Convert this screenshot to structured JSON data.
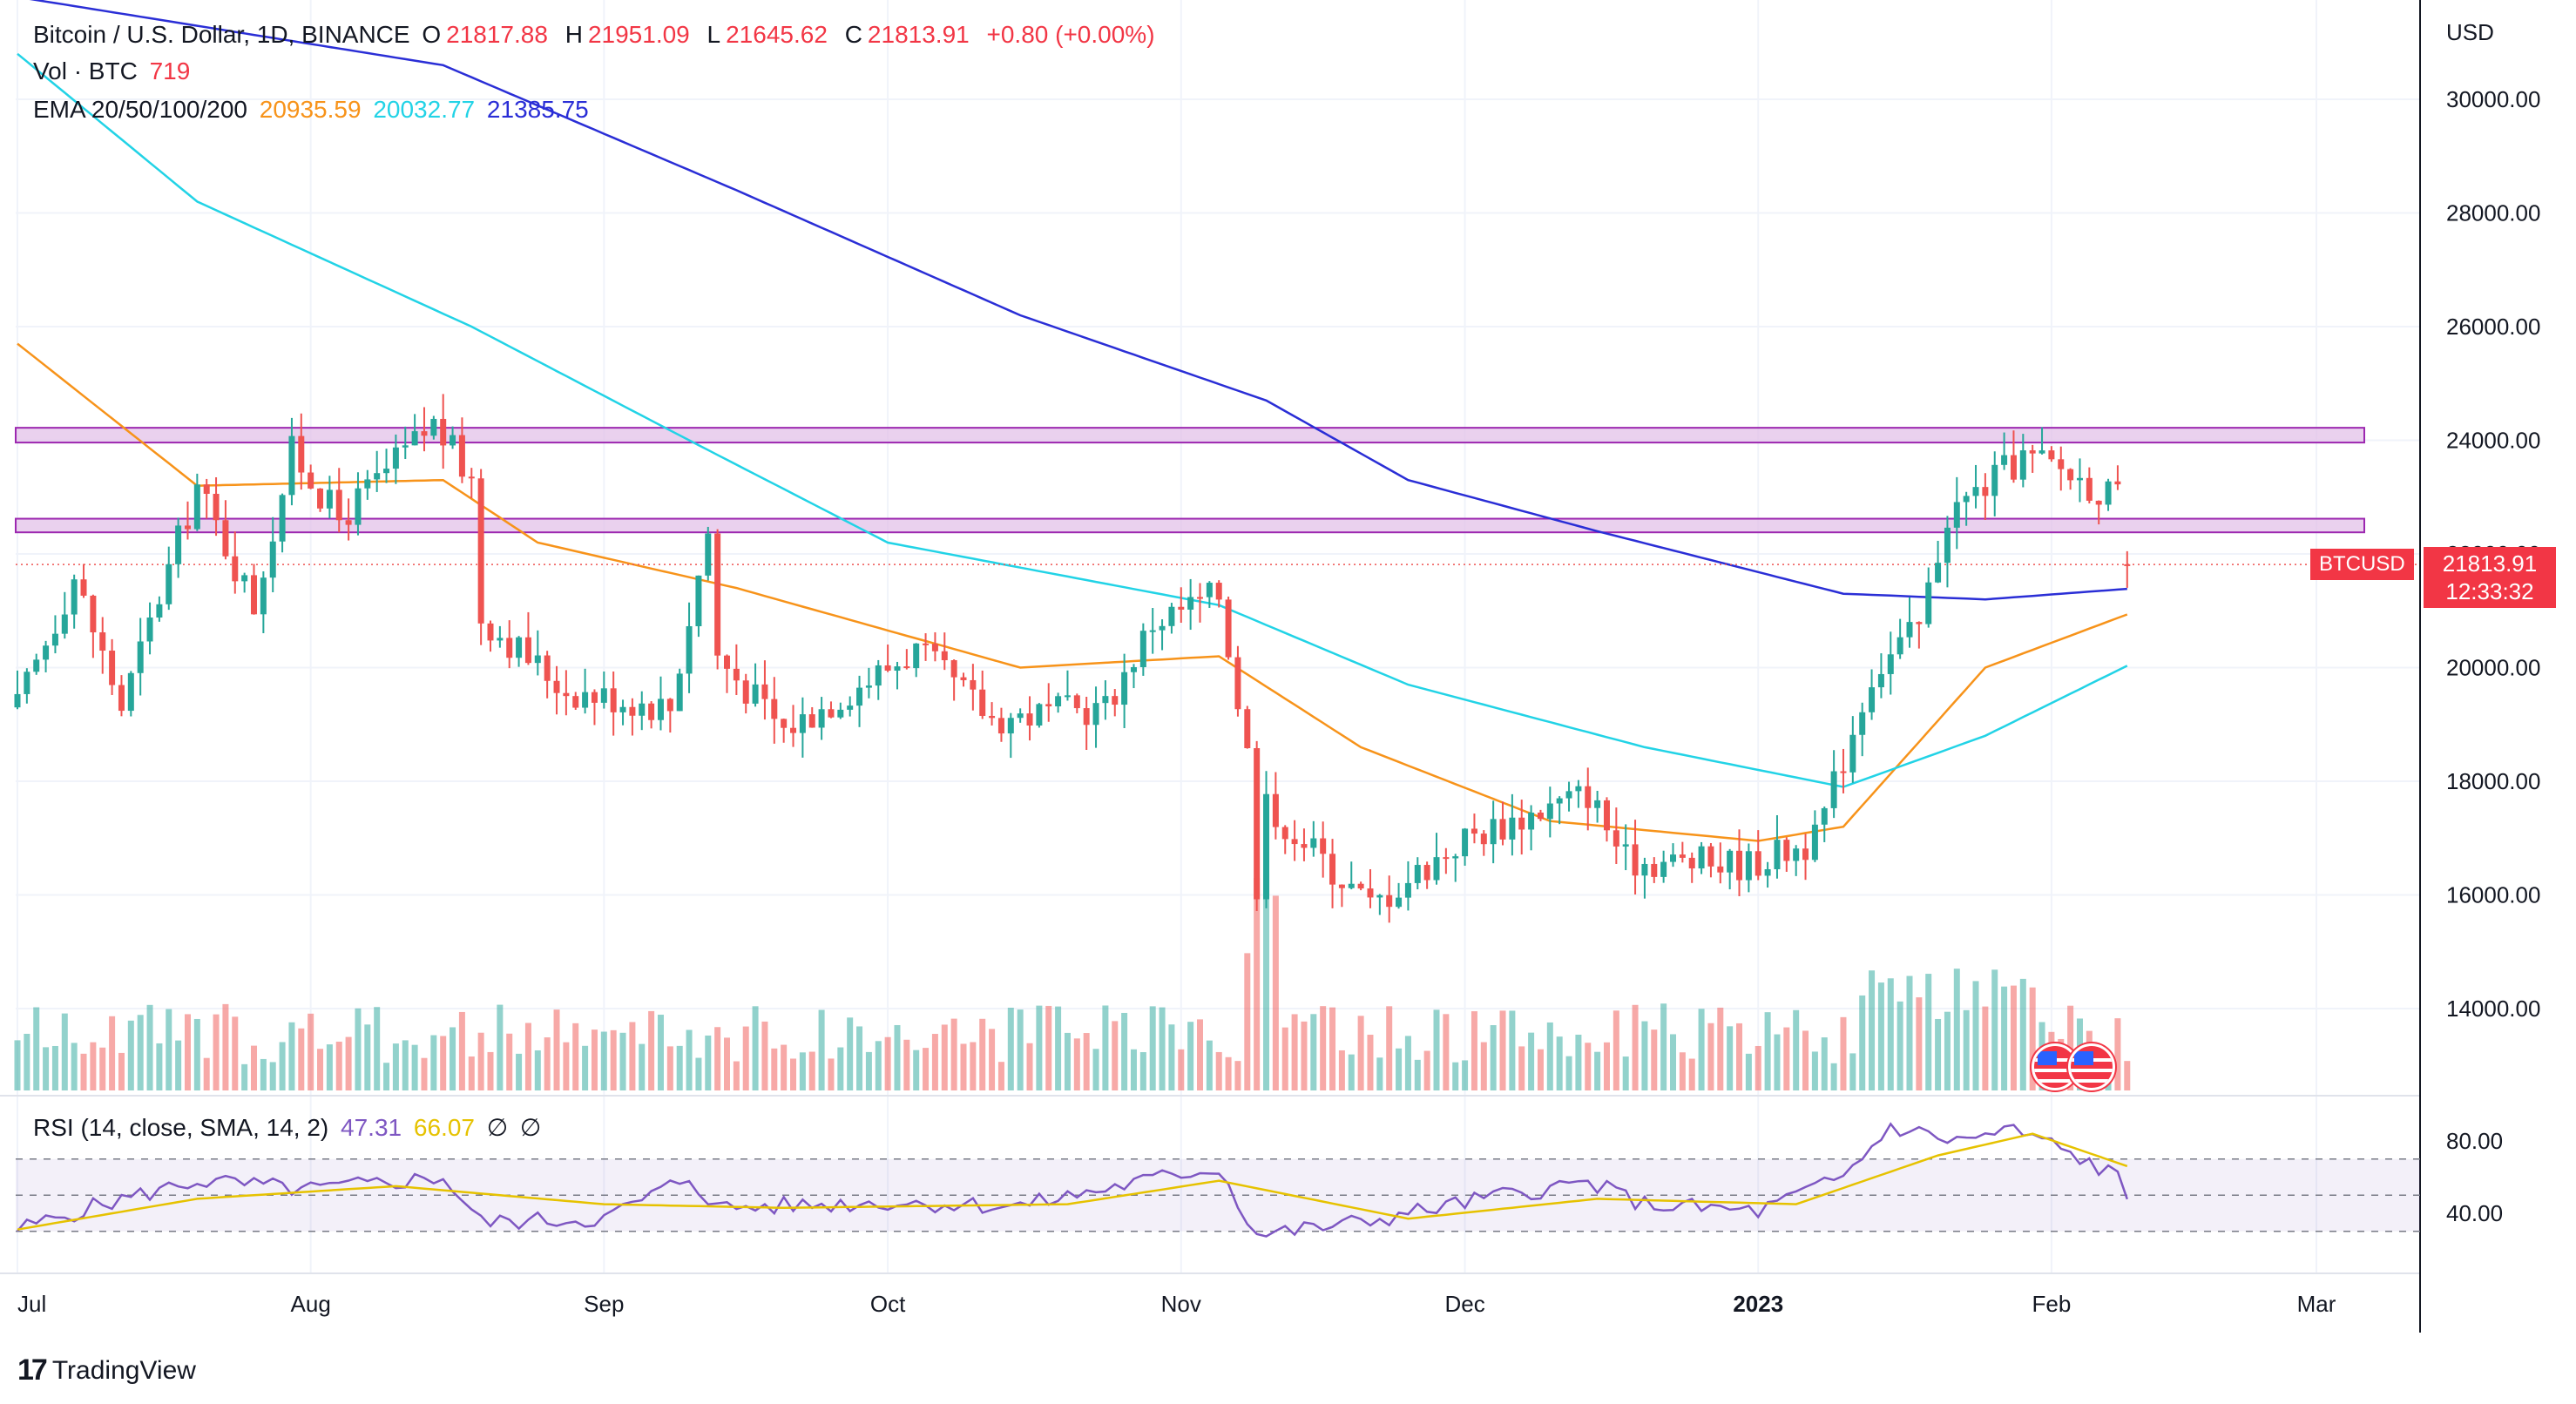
{
  "header": {
    "symbol_title": "Bitcoin / U.S. Dollar, 1D, BINANCE",
    "open_label": "O",
    "open": "21817.88",
    "high_label": "H",
    "high": "21951.09",
    "low_label": "L",
    "low": "21645.62",
    "close_label": "C",
    "close": "21813.91",
    "change": "+0.80 (+0.00%)"
  },
  "volume_legend": {
    "label": "Vol · BTC",
    "value": "719"
  },
  "ema_legend": {
    "label": "EMA 20/50/100/200",
    "ema20": "20935.59",
    "ema50": "20032.77",
    "ema100": "21385.75"
  },
  "rsi_legend": {
    "label": "RSI (14, close, SMA, 14, 2)",
    "rsi": "47.31",
    "sma": "66.07",
    "icon1": "∅",
    "icon2": "∅"
  },
  "price_axis": {
    "currency": "USD",
    "ticks": [
      "30000.00",
      "28000.00",
      "26000.00",
      "24000.00",
      "22000.00",
      "20000.00",
      "18000.00",
      "16000.00",
      "14000.00"
    ]
  },
  "rsi_axis": {
    "ticks": [
      "80.00",
      "40.00"
    ]
  },
  "time_axis": {
    "ticks": [
      "Jul",
      "Aug",
      "Sep",
      "Oct",
      "Nov",
      "Dec",
      "2023",
      "Feb",
      "Mar"
    ]
  },
  "last_price": {
    "symbol": "BTCUSD",
    "price": "21813.91",
    "countdown": "12:33:32"
  },
  "branding": {
    "name": "TradingView"
  },
  "colors": {
    "up": "#26a69a",
    "down": "#ef5350",
    "ema20": "#f7931a",
    "ema50": "#22d3e6",
    "ema100": "#2a2ed6",
    "rsi": "#7e57c2",
    "rsi_sma": "#e6c200",
    "zone_fill": "#e1bee7",
    "zone_stroke": "#9c27b0"
  },
  "chart_data": [
    {
      "type": "candlestick",
      "title": "Bitcoin / U.S. Dollar, 1D, BINANCE",
      "ylabel": "USD",
      "ylim": [
        13000,
        31500
      ],
      "time_ticks": [
        "Jul",
        "Aug",
        "Sep",
        "Oct",
        "Nov",
        "Dec",
        "2023",
        "Feb",
        "Mar"
      ],
      "close_waypoints": [
        {
          "date": "2022-07-01",
          "close": 19300
        },
        {
          "date": "2022-07-07",
          "close": 21600
        },
        {
          "date": "2022-07-12",
          "close": 19300
        },
        {
          "date": "2022-07-20",
          "close": 23200
        },
        {
          "date": "2022-07-26",
          "close": 21100
        },
        {
          "date": "2022-07-30",
          "close": 23800
        },
        {
          "date": "2022-08-04",
          "close": 22600
        },
        {
          "date": "2022-08-14",
          "close": 24300
        },
        {
          "date": "2022-08-18",
          "close": 23300
        },
        {
          "date": "2022-08-19",
          "close": 20900
        },
        {
          "date": "2022-08-28",
          "close": 19600
        },
        {
          "date": "2022-09-08",
          "close": 19300
        },
        {
          "date": "2022-09-12",
          "close": 22400
        },
        {
          "date": "2022-09-13",
          "close": 20200
        },
        {
          "date": "2022-09-20",
          "close": 18900
        },
        {
          "date": "2022-10-04",
          "close": 20300
        },
        {
          "date": "2022-10-12",
          "close": 19100
        },
        {
          "date": "2022-10-24",
          "close": 19300
        },
        {
          "date": "2022-10-29",
          "close": 20800
        },
        {
          "date": "2022-11-05",
          "close": 21300
        },
        {
          "date": "2022-11-08",
          "close": 18500
        },
        {
          "date": "2022-11-09",
          "close": 15900
        },
        {
          "date": "2022-11-10",
          "close": 17600
        },
        {
          "date": "2022-11-21",
          "close": 15800
        },
        {
          "date": "2022-12-01",
          "close": 17000
        },
        {
          "date": "2022-12-14",
          "close": 17800
        },
        {
          "date": "2022-12-18",
          "close": 16600
        },
        {
          "date": "2022-12-31",
          "close": 16550
        },
        {
          "date": "2023-01-07",
          "close": 16950
        },
        {
          "date": "2023-01-13",
          "close": 19900
        },
        {
          "date": "2023-01-18",
          "close": 20700
        },
        {
          "date": "2023-01-21",
          "close": 22700
        },
        {
          "date": "2023-01-29",
          "close": 23700
        },
        {
          "date": "2023-02-02",
          "close": 23500
        },
        {
          "date": "2023-02-08",
          "close": 22950
        },
        {
          "date": "2023-02-09",
          "close": 21813.91
        }
      ],
      "last": {
        "open": 21817.88,
        "high": 21951.09,
        "low": 21645.62,
        "close": 21813.91
      }
    },
    {
      "type": "line",
      "series": [
        {
          "name": "EMA 20",
          "color": "#f7931a",
          "points": [
            [
              "2022-07-01",
              25700
            ],
            [
              "2022-07-20",
              23200
            ],
            [
              "2022-08-15",
              23300
            ],
            [
              "2022-08-25",
              22200
            ],
            [
              "2022-09-15",
              21400
            ],
            [
              "2022-10-15",
              20000
            ],
            [
              "2022-11-05",
              20200
            ],
            [
              "2022-11-20",
              18600
            ],
            [
              "2022-12-10",
              17300
            ],
            [
              "2023-01-01",
              16950
            ],
            [
              "2023-01-10",
              17200
            ],
            [
              "2023-01-25",
              20000
            ],
            [
              "2023-02-09",
              20935.59
            ]
          ]
        },
        {
          "name": "EMA 50",
          "color": "#22d3e6",
          "points": [
            [
              "2022-07-01",
              30800
            ],
            [
              "2022-07-20",
              28200
            ],
            [
              "2022-08-18",
              26000
            ],
            [
              "2022-09-10",
              24000
            ],
            [
              "2022-10-01",
              22200
            ],
            [
              "2022-11-05",
              21100
            ],
            [
              "2022-11-25",
              19700
            ],
            [
              "2022-12-20",
              18600
            ],
            [
              "2023-01-10",
              17900
            ],
            [
              "2023-01-25",
              18800
            ],
            [
              "2023-02-09",
              20032.77
            ]
          ]
        },
        {
          "name": "EMA 100",
          "color": "#2a2ed6",
          "points": [
            [
              "2022-07-01",
              31800
            ],
            [
              "2022-08-15",
              30600
            ],
            [
              "2022-09-15",
              28400
            ],
            [
              "2022-10-15",
              26200
            ],
            [
              "2022-11-10",
              24700
            ],
            [
              "2022-11-25",
              23300
            ],
            [
              "2022-12-15",
              22400
            ],
            [
              "2023-01-10",
              21300
            ],
            [
              "2023-01-25",
              21200
            ],
            [
              "2023-02-09",
              21385.75
            ]
          ]
        }
      ],
      "zones": [
        {
          "name": "resistance",
          "top": 24220,
          "bottom": 23960
        },
        {
          "name": "support",
          "top": 22620,
          "bottom": 22380
        }
      ]
    },
    {
      "type": "bar",
      "title": "Vol · BTC",
      "last_value": 719
    },
    {
      "type": "line",
      "title": "RSI (14, close, SMA, 14, 2)",
      "ylim": [
        20,
        100
      ],
      "bands": [
        70,
        50,
        30
      ],
      "series": [
        {
          "name": "RSI",
          "color": "#7e57c2",
          "points": [
            [
              "2022-07-01",
              31
            ],
            [
              "2022-07-10",
              45
            ],
            [
              "2022-07-20",
              58
            ],
            [
              "2022-08-01",
              53
            ],
            [
              "2022-08-15",
              60
            ],
            [
              "2022-08-19",
              35
            ],
            [
              "2022-09-01",
              37
            ],
            [
              "2022-09-10",
              60
            ],
            [
              "2022-09-13",
              43
            ],
            [
              "2022-10-01",
              46
            ],
            [
              "2022-10-15",
              44
            ],
            [
              "2022-11-01",
              62
            ],
            [
              "2022-11-05",
              65
            ],
            [
              "2022-11-09",
              28
            ],
            [
              "2022-11-20",
              35
            ],
            [
              "2022-12-05",
              50
            ],
            [
              "2022-12-14",
              57
            ],
            [
              "2022-12-20",
              45
            ],
            [
              "2023-01-01",
              41
            ],
            [
              "2023-01-10",
              60
            ],
            [
              "2023-01-15",
              88
            ],
            [
              "2023-01-22",
              80
            ],
            [
              "2023-01-28",
              86
            ],
            [
              "2023-02-01",
              78
            ],
            [
              "2023-02-08",
              60
            ],
            [
              "2023-02-09",
              47.31
            ]
          ]
        },
        {
          "name": "SMA",
          "color": "#e6c200",
          "points": [
            [
              "2022-07-01",
              31
            ],
            [
              "2022-07-20",
              48
            ],
            [
              "2022-08-10",
              55
            ],
            [
              "2022-09-01",
              45
            ],
            [
              "2022-09-20",
              43
            ],
            [
              "2022-10-20",
              45
            ],
            [
              "2022-11-05",
              58
            ],
            [
              "2022-11-25",
              37
            ],
            [
              "2022-12-15",
              48
            ],
            [
              "2023-01-05",
              45
            ],
            [
              "2023-01-20",
              72
            ],
            [
              "2023-01-30",
              84
            ],
            [
              "2023-02-09",
              66.07
            ]
          ]
        }
      ]
    }
  ]
}
